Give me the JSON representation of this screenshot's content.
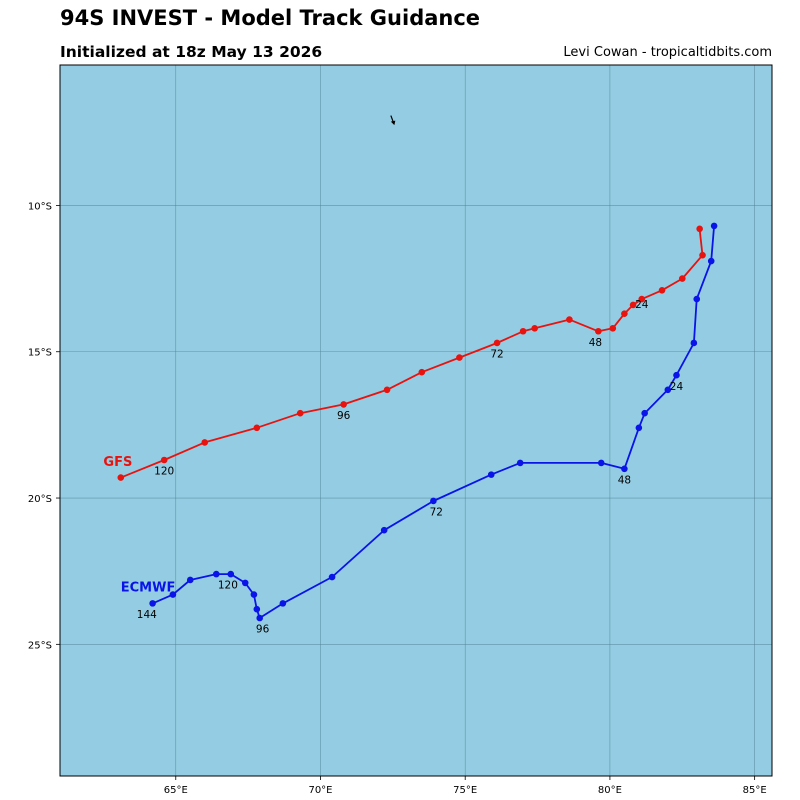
{
  "header": {
    "title": "94S INVEST - Model Track Guidance",
    "subtitle": "Initialized at 18z May 13 2026",
    "credit": "Levi Cowan - tropicaltidbits.com"
  },
  "colors": {
    "ocean": "#94cde3",
    "grid": "#4a7a8c",
    "gfs": "#e8130f",
    "ecmwf": "#0a14e8"
  },
  "chart_data": {
    "type": "line",
    "xlim": [
      61.0,
      85.6
    ],
    "ylim": [
      -29.5,
      -5.2
    ],
    "x_ticks": [
      {
        "value": 65,
        "label": "65°E"
      },
      {
        "value": 70,
        "label": "70°E"
      },
      {
        "value": 75,
        "label": "75°E"
      },
      {
        "value": 80,
        "label": "80°E"
      },
      {
        "value": 85,
        "label": "85°E"
      }
    ],
    "y_ticks": [
      {
        "value": -10,
        "label": "10°S"
      },
      {
        "value": -15,
        "label": "15°S"
      },
      {
        "value": -20,
        "label": "20°S"
      },
      {
        "value": -25,
        "label": "25°S"
      }
    ],
    "grid": true,
    "wind_arrow": {
      "lon": 72.5,
      "lat": -7.1
    },
    "series": [
      {
        "name": "GFS",
        "color": "#e8130f",
        "label_at": {
          "lon": 62.5,
          "lat": -18.9
        },
        "points": [
          {
            "lon": 83.1,
            "lat": -10.8
          },
          {
            "lon": 83.2,
            "lat": -11.7
          },
          {
            "lon": 82.5,
            "lat": -12.5
          },
          {
            "lon": 81.8,
            "lat": -12.9
          },
          {
            "lon": 81.1,
            "lat": -13.2
          },
          {
            "lon": 80.8,
            "lat": -13.4
          },
          {
            "lon": 80.5,
            "lat": -13.7
          },
          {
            "lon": 80.1,
            "lat": -14.2
          },
          {
            "lon": 79.6,
            "lat": -14.3
          },
          {
            "lon": 78.6,
            "lat": -13.9
          },
          {
            "lon": 77.4,
            "lat": -14.2
          },
          {
            "lon": 77.0,
            "lat": -14.3
          },
          {
            "lon": 76.1,
            "lat": -14.7
          },
          {
            "lon": 74.8,
            "lat": -15.2
          },
          {
            "lon": 73.5,
            "lat": -15.7
          },
          {
            "lon": 72.3,
            "lat": -16.3
          },
          {
            "lon": 70.8,
            "lat": -16.8
          },
          {
            "lon": 69.3,
            "lat": -17.1
          },
          {
            "lon": 67.8,
            "lat": -17.6
          },
          {
            "lon": 66.0,
            "lat": -18.1
          },
          {
            "lon": 64.6,
            "lat": -18.7
          },
          {
            "lon": 63.1,
            "lat": -19.3
          }
        ],
        "hour_labels": [
          {
            "text": "24",
            "lon": 81.1,
            "lat": -13.5
          },
          {
            "text": "48",
            "lon": 79.5,
            "lat": -14.8
          },
          {
            "text": "72",
            "lon": 76.1,
            "lat": -15.2
          },
          {
            "text": "96",
            "lon": 70.8,
            "lat": -17.3
          },
          {
            "text": "120",
            "lon": 64.6,
            "lat": -19.2
          }
        ]
      },
      {
        "name": "ECMWF",
        "color": "#0a14e8",
        "label_at": {
          "lon": 63.1,
          "lat": -23.2
        },
        "points": [
          {
            "lon": 83.6,
            "lat": -10.7
          },
          {
            "lon": 83.5,
            "lat": -11.9
          },
          {
            "lon": 83.0,
            "lat": -13.2
          },
          {
            "lon": 82.9,
            "lat": -14.7
          },
          {
            "lon": 82.3,
            "lat": -15.8
          },
          {
            "lon": 82.0,
            "lat": -16.3
          },
          {
            "lon": 81.2,
            "lat": -17.1
          },
          {
            "lon": 81.0,
            "lat": -17.6
          },
          {
            "lon": 80.5,
            "lat": -19.0
          },
          {
            "lon": 79.7,
            "lat": -18.8
          },
          {
            "lon": 76.9,
            "lat": -18.8
          },
          {
            "lon": 75.9,
            "lat": -19.2
          },
          {
            "lon": 73.9,
            "lat": -20.1
          },
          {
            "lon": 72.2,
            "lat": -21.1
          },
          {
            "lon": 70.4,
            "lat": -22.7
          },
          {
            "lon": 68.7,
            "lat": -23.6
          },
          {
            "lon": 67.9,
            "lat": -24.1
          },
          {
            "lon": 67.8,
            "lat": -23.8
          },
          {
            "lon": 67.7,
            "lat": -23.3
          },
          {
            "lon": 67.4,
            "lat": -22.9
          },
          {
            "lon": 66.9,
            "lat": -22.6
          },
          {
            "lon": 66.4,
            "lat": -22.6
          },
          {
            "lon": 65.5,
            "lat": -22.8
          },
          {
            "lon": 64.9,
            "lat": -23.3
          },
          {
            "lon": 64.2,
            "lat": -23.6
          }
        ],
        "hour_labels": [
          {
            "text": "24",
            "lon": 82.3,
            "lat": -16.3
          },
          {
            "text": "48",
            "lon": 80.5,
            "lat": -19.5
          },
          {
            "text": "72",
            "lon": 74.0,
            "lat": -20.6
          },
          {
            "text": "96",
            "lon": 68.0,
            "lat": -24.6
          },
          {
            "text": "120",
            "lon": 66.8,
            "lat": -23.1
          },
          {
            "text": "144",
            "lon": 64.0,
            "lat": -24.1
          }
        ]
      }
    ]
  }
}
